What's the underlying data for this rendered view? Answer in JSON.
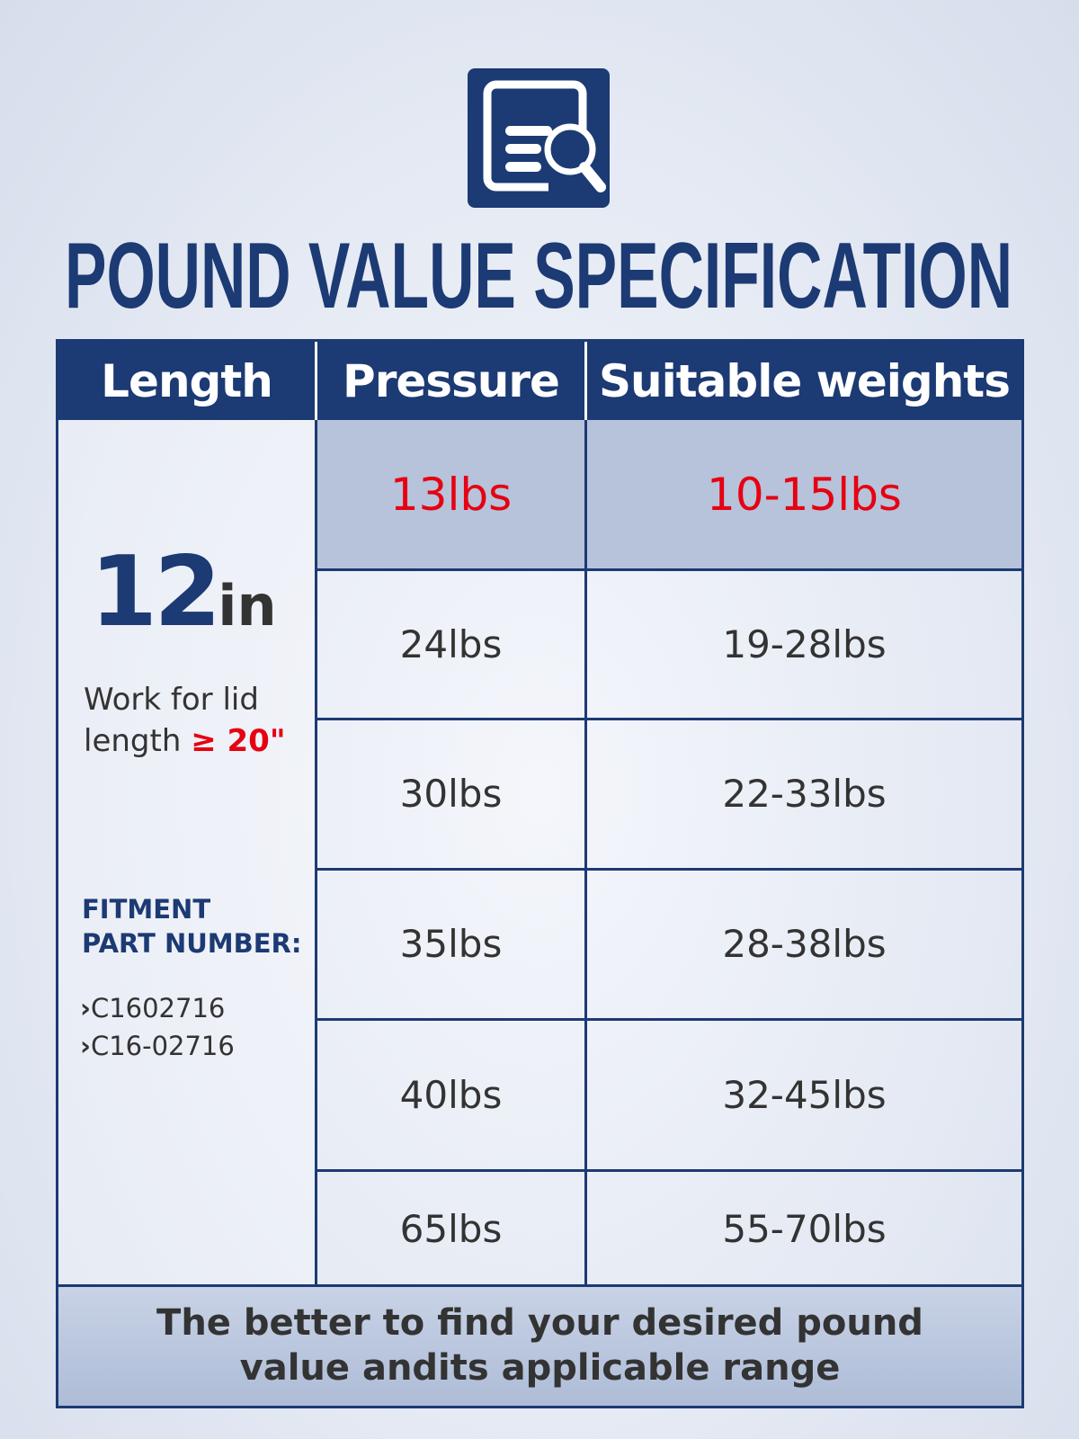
{
  "title": "POUND VALUE SPECIFICATION",
  "icon": "document-search-icon",
  "colors": {
    "brand": "#1c3a73",
    "highlight": "#e60012",
    "highlight_row": "#b6c3da"
  },
  "table": {
    "headers": [
      "Length",
      "Pressure",
      "Suitable weights"
    ],
    "length": {
      "number": "12",
      "unit": "in",
      "note_prefix": "Work for lid",
      "note_line2": "length",
      "note_value": "≥ 20\""
    },
    "fitment": {
      "label_line1": "FITMENT",
      "label_line2": "PART NUMBER:",
      "parts": [
        "C1602716",
        "C16-02716"
      ]
    },
    "rows": [
      {
        "pressure": "13lbs",
        "weights": "10-15lbs",
        "highlighted": true
      },
      {
        "pressure": "24lbs",
        "weights": "19-28lbs"
      },
      {
        "pressure": "30lbs",
        "weights": "22-33lbs"
      },
      {
        "pressure": "35lbs",
        "weights": "28-38lbs"
      },
      {
        "pressure": "40lbs",
        "weights": "32-45lbs"
      },
      {
        "pressure": "65lbs",
        "weights": "55-70lbs"
      }
    ],
    "footer_line1": "The better to find your desired pound",
    "footer_line2": "value andits applicable range"
  }
}
